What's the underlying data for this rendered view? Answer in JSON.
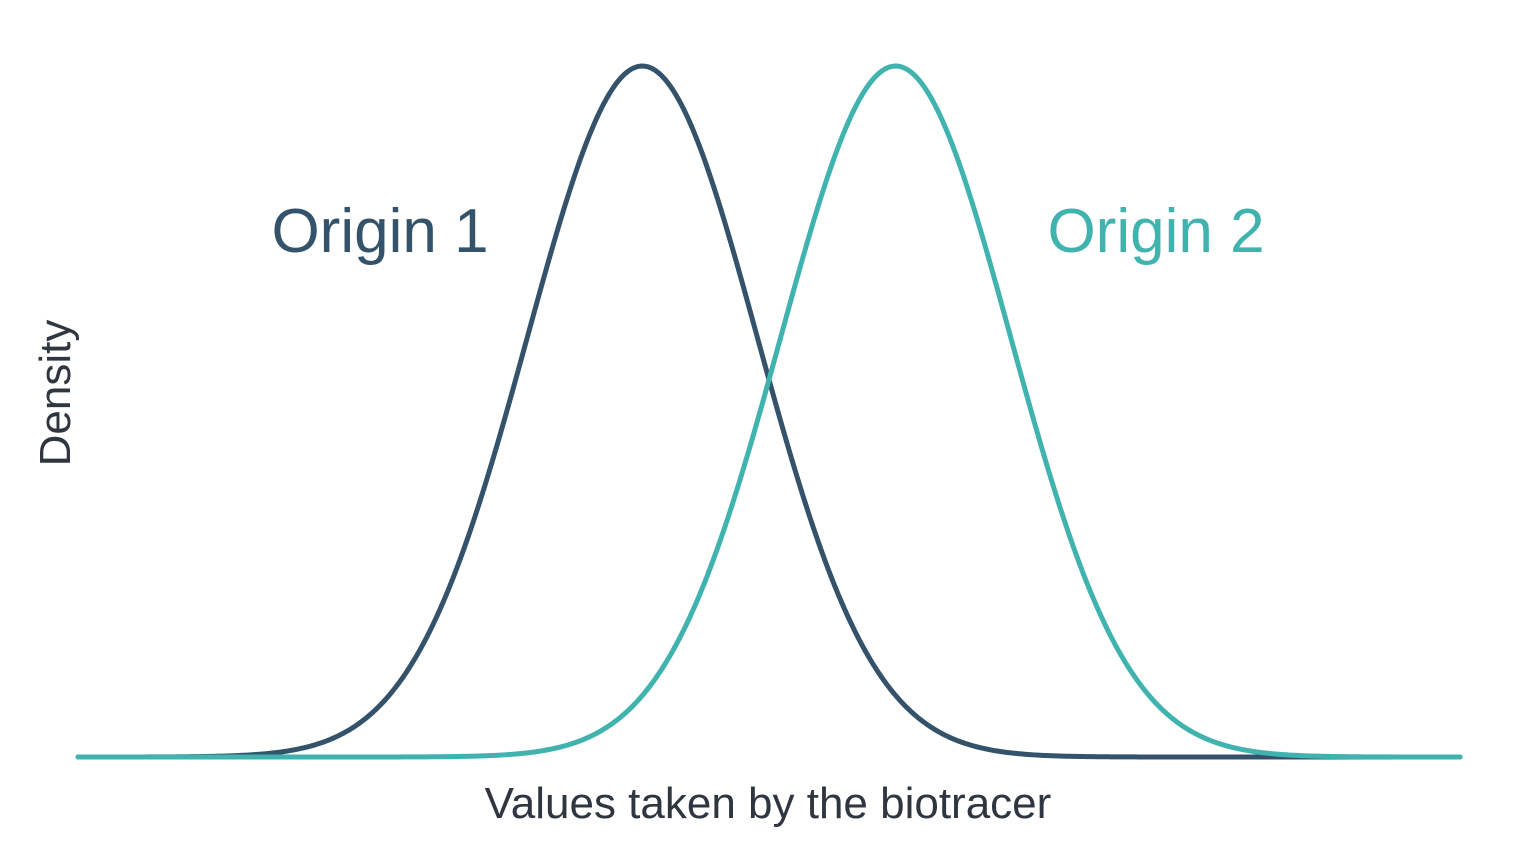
{
  "chart_data": {
    "type": "line",
    "xlabel": "Values taken by the biotracer",
    "ylabel": "Density",
    "xlim": [
      -6,
      6
    ],
    "ylim": [
      0,
      1
    ],
    "grid": false,
    "legend": "inline labels above each curve",
    "series": [
      {
        "name": "Origin 1",
        "color": "#34536b",
        "peak_x": -1.1,
        "sd": 1.0,
        "peak_density": 1.0
      },
      {
        "name": "Origin 2",
        "color": "#40b3af",
        "peak_x": 1.1,
        "sd": 1.0,
        "peak_density": 1.0
      }
    ]
  }
}
